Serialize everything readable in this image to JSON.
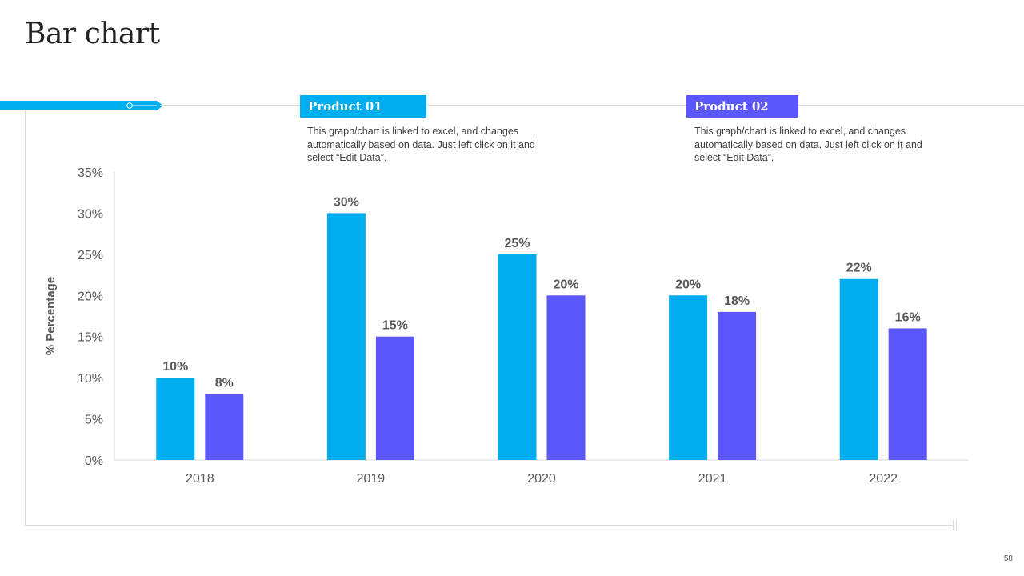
{
  "slide": {
    "title": "Bar chart",
    "page_number": "58"
  },
  "colors": {
    "product_01": "#00aeef",
    "product_02": "#5b57fb",
    "axis": "#d9d9d9",
    "text": "#595959"
  },
  "legend": [
    {
      "name": "Product 01",
      "description": "This graph/chart is linked to excel, and changes automatically based on data. Just left click on it and select “Edit Data”."
    },
    {
      "name": "Product 02",
      "description": "This graph/chart is linked to excel, and changes automatically based on data. Just left click on it and select “Edit Data”."
    }
  ],
  "chart_data": {
    "type": "bar",
    "title": "Bar chart",
    "xlabel": "",
    "ylabel": "% Percentage",
    "categories": [
      "2018",
      "2019",
      "2020",
      "2021",
      "2022"
    ],
    "series": [
      {
        "name": "Product 01",
        "values": [
          10,
          30,
          25,
          20,
          22
        ],
        "labels": [
          "10%",
          "30%",
          "25%",
          "20%",
          "22%"
        ]
      },
      {
        "name": "Product 02",
        "values": [
          8,
          15,
          20,
          18,
          16
        ],
        "labels": [
          "8%",
          "15%",
          "20%",
          "18%",
          "16%"
        ]
      }
    ],
    "ylim": [
      0,
      35
    ],
    "yticks": [
      0,
      5,
      10,
      15,
      20,
      25,
      30,
      35
    ],
    "ytick_labels": [
      "0%",
      "5%",
      "10%",
      "15%",
      "20%",
      "25%",
      "30%",
      "35%"
    ],
    "grid": false,
    "legend_position": "top"
  }
}
